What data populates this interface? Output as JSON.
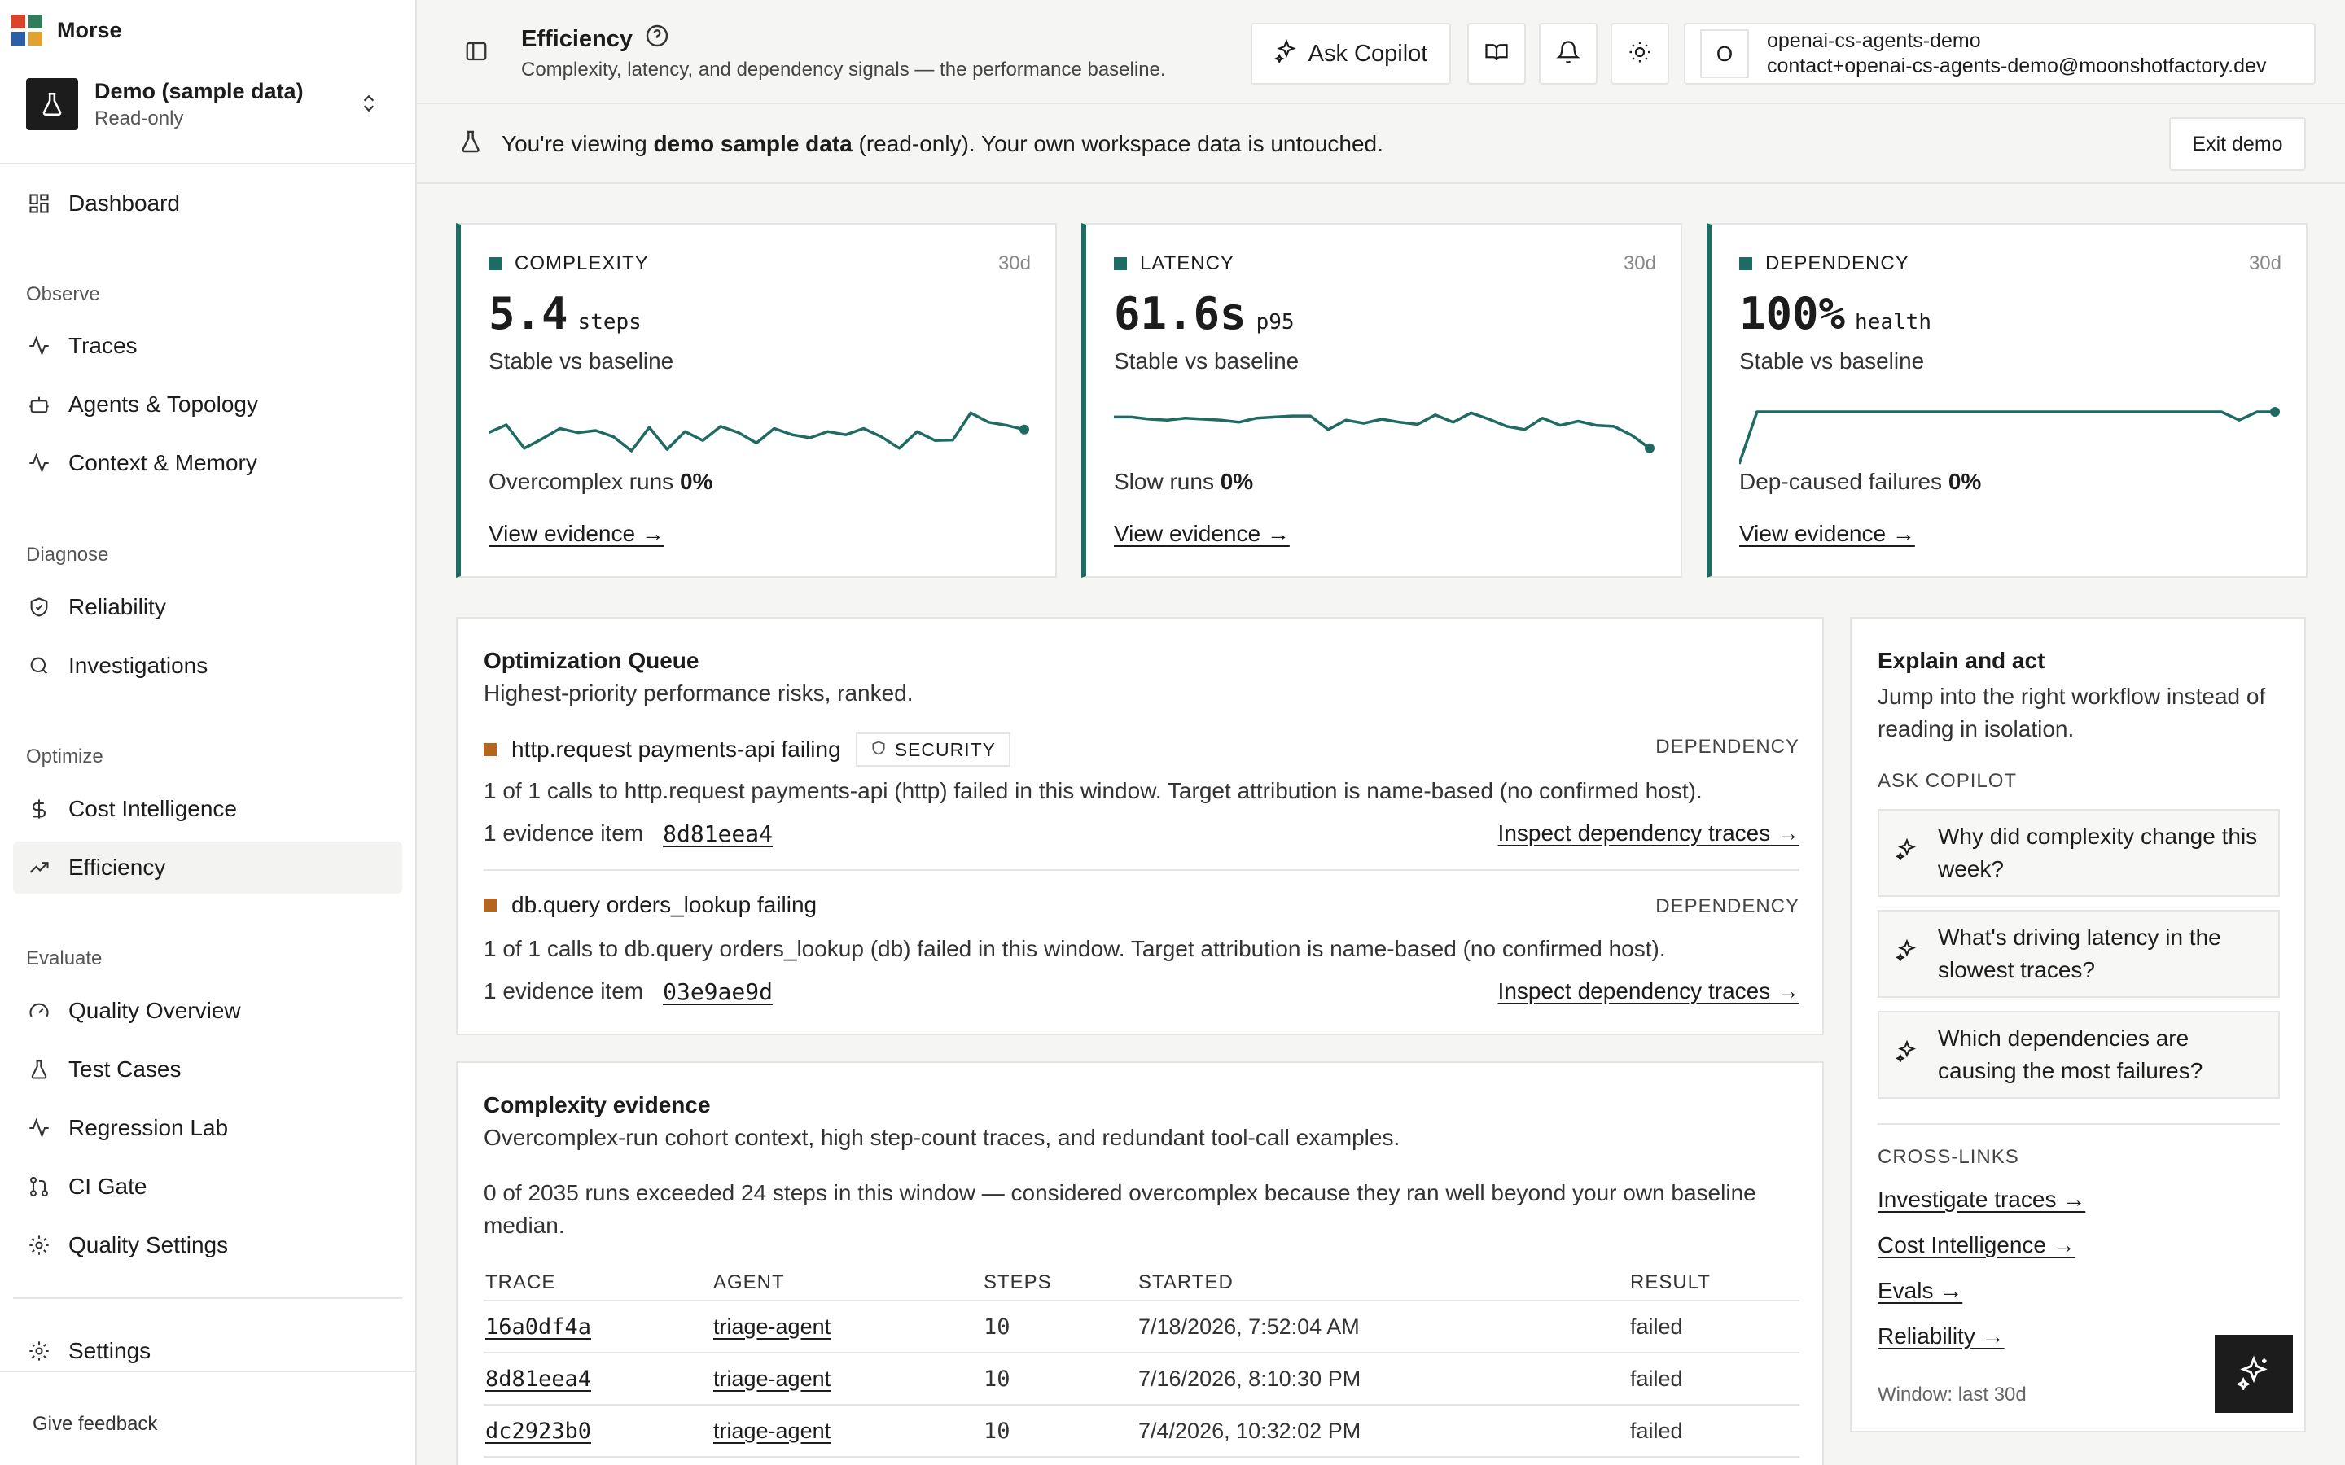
{
  "app": {
    "name": "Morse"
  },
  "workspace": {
    "name": "Demo (sample data)",
    "mode": "Read-only"
  },
  "nav": {
    "dashboard": "Dashboard",
    "groups": {
      "observe": "Observe",
      "diagnose": "Diagnose",
      "optimize": "Optimize",
      "evaluate": "Evaluate"
    },
    "items": {
      "traces": "Traces",
      "agents": "Agents & Topology",
      "context": "Context & Memory",
      "reliability": "Reliability",
      "investigations": "Investigations",
      "cost": "Cost Intelligence",
      "efficiency": "Efficiency",
      "quality_overview": "Quality Overview",
      "test_cases": "Test Cases",
      "regression_lab": "Regression Lab",
      "ci_gate": "CI Gate",
      "quality_settings": "Quality Settings",
      "settings": "Settings"
    },
    "feedback": "Give feedback"
  },
  "header": {
    "title": "Efficiency",
    "subtitle": "Complexity, latency, and dependency signals — the performance baseline.",
    "copilot_label": "Ask Copilot",
    "user_initial": "O",
    "user_name": "openai-cs-agents-demo",
    "user_email": "contact+openai-cs-agents-demo@moonshotfactory.dev"
  },
  "banner": {
    "prefix": "You're viewing ",
    "strong": "demo sample data",
    "suffix": " (read-only). Your own workspace data is untouched.",
    "exit_label": "Exit demo"
  },
  "cards": [
    {
      "label": "COMPLEXITY",
      "period": "30d",
      "value": "5.4",
      "unit": "steps",
      "trend": "Stable vs baseline",
      "foot_label": "Overcomplex runs ",
      "foot_value": "0%",
      "link": "View evidence →",
      "spark": [
        0.6,
        0.75,
        0.3,
        0.48,
        0.68,
        0.6,
        0.64,
        0.52,
        0.25,
        0.7,
        0.28,
        0.62,
        0.45,
        0.72,
        0.6,
        0.4,
        0.68,
        0.56,
        0.5,
        0.62,
        0.56,
        0.68,
        0.52,
        0.3,
        0.62,
        0.45,
        0.46,
        0.98,
        0.8,
        0.74,
        0.66
      ]
    },
    {
      "label": "LATENCY",
      "period": "30d",
      "value": "61.6s",
      "unit": "p95",
      "trend": "Stable vs baseline",
      "foot_label": "Slow runs ",
      "foot_value": "0%",
      "link": "View evidence →",
      "spark": [
        0.9,
        0.9,
        0.86,
        0.84,
        0.88,
        0.86,
        0.84,
        0.8,
        0.88,
        0.9,
        0.92,
        0.92,
        0.66,
        0.84,
        0.78,
        0.86,
        0.8,
        0.76,
        0.94,
        0.8,
        0.98,
        0.86,
        0.72,
        0.66,
        0.88,
        0.74,
        0.82,
        0.74,
        0.72,
        0.55,
        0.3
      ]
    },
    {
      "label": "DEPENDENCY",
      "period": "30d",
      "value": "100%",
      "unit": "health",
      "trend": "Stable vs baseline",
      "foot_label": "Dep-caused failures ",
      "foot_value": "0%",
      "link": "View evidence →",
      "spark": [
        0.0,
        1,
        1,
        1,
        1,
        1,
        1,
        1,
        1,
        1,
        1,
        1,
        1,
        1,
        1,
        1,
        1,
        1,
        1,
        1,
        1,
        1,
        1,
        1,
        1,
        1,
        1,
        1,
        0.84,
        1,
        1
      ]
    }
  ],
  "queue": {
    "title": "Optimization Queue",
    "subtitle": "Highest-priority performance risks, ranked.",
    "items": [
      {
        "name": "http.request payments-api failing",
        "tag": "SECURITY",
        "category": "DEPENDENCY",
        "desc": "1 of 1 calls to http.request payments-api (http) failed in this window. Target attribution is name-based (no confirmed host).",
        "evidence_count": "1 evidence item",
        "evidence_id": "8d81eea4",
        "link": "Inspect dependency traces →"
      },
      {
        "name": "db.query orders_lookup failing",
        "tag": "",
        "category": "DEPENDENCY",
        "desc": "1 of 1 calls to db.query orders_lookup (db) failed in this window. Target attribution is name-based (no confirmed host).",
        "evidence_count": "1 evidence item",
        "evidence_id": "03e9ae9d",
        "link": "Inspect dependency traces →"
      }
    ]
  },
  "evidence": {
    "title": "Complexity evidence",
    "subtitle": "Overcomplex-run cohort context, high step-count traces, and redundant tool-call examples.",
    "text": "0 of 2035 runs exceeded 24 steps in this window — considered overcomplex because they ran well beyond your own baseline median.",
    "columns": [
      "TRACE",
      "AGENT",
      "STEPS",
      "STARTED",
      "RESULT"
    ],
    "rows": [
      {
        "trace": "16a0df4a",
        "agent": "triage-agent",
        "steps": "10",
        "started": "7/18/2026, 7:52:04 AM",
        "result": "failed"
      },
      {
        "trace": "8d81eea4",
        "agent": "triage-agent",
        "steps": "10",
        "started": "7/16/2026, 8:10:30 PM",
        "result": "failed"
      },
      {
        "trace": "dc2923b0",
        "agent": "triage-agent",
        "steps": "10",
        "started": "7/4/2026, 10:32:02 PM",
        "result": "failed"
      }
    ]
  },
  "explain": {
    "title": "Explain and act",
    "subtitle": "Jump into the right workflow instead of reading in isolation.",
    "copilot_section": "ASK COPILOT",
    "questions": [
      "Why did complexity change this week?",
      "What's driving latency in the slowest traces?",
      "Which dependencies are causing the most failures?"
    ],
    "crosslinks_section": "CROSS-LINKS",
    "links": [
      "Investigate traces →",
      "Cost Intelligence →",
      "Evals →",
      "Reliability →"
    ],
    "window": "Window: last 30d"
  },
  "colors": {
    "accent": "#1f6b63",
    "warning": "#b5651d"
  }
}
